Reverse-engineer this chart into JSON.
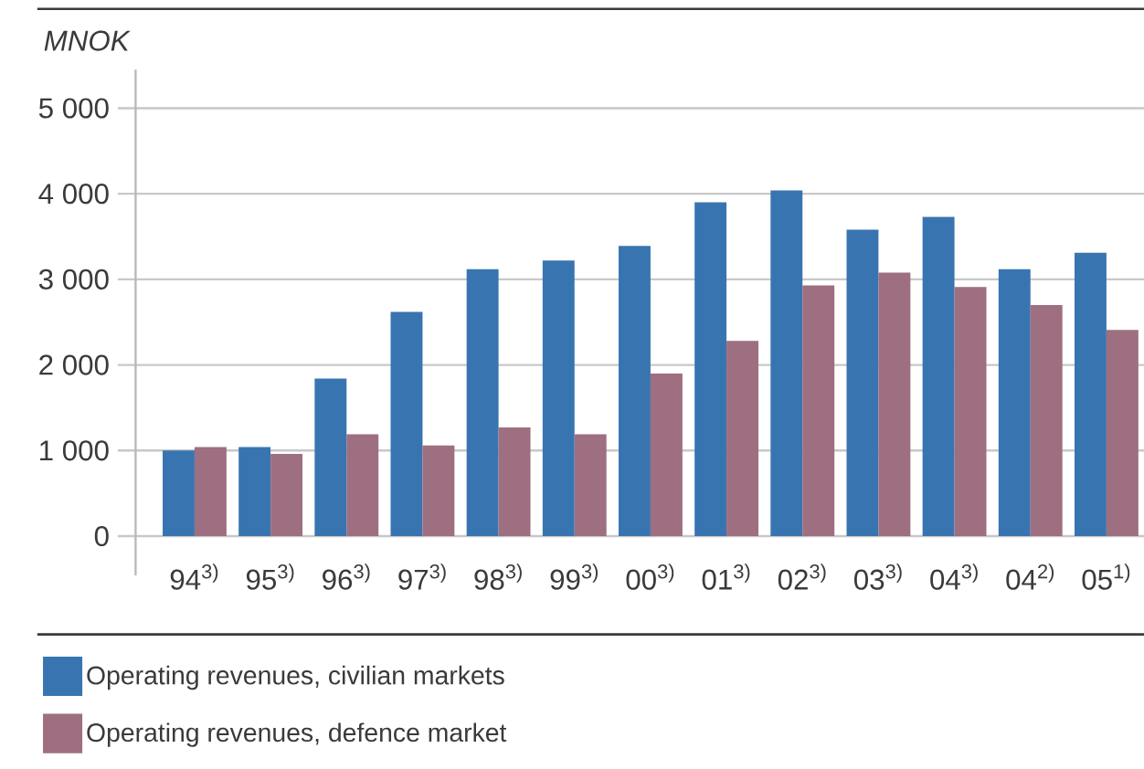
{
  "chart_data": {
    "type": "bar",
    "ylabel": "MNOK",
    "categories": [
      "94$^{3)}$",
      "95$^{3)}$",
      "96$^{3)}$",
      "97$^{3)}$",
      "98$^{3)}$",
      "99$^{3)}$",
      "00$^{3)}$",
      "01$^{3)}$",
      "02$^{3)}$",
      "03$^{3)}$",
      "04$^{3)}$",
      "04$^{2)}$",
      "05$^{1)}$"
    ],
    "series": [
      {
        "name": "Operating revenues, civilian markets",
        "color": "#3875b0",
        "values": [
          1000,
          1040,
          1840,
          2620,
          3120,
          3220,
          3390,
          3900,
          4040,
          3580,
          3730,
          3120,
          3310
        ]
      },
      {
        "name": "Operating revenues, defence market",
        "color": "#9e6e81",
        "values": [
          1040,
          960,
          1190,
          1060,
          1270,
          1190,
          1900,
          2280,
          2930,
          3080,
          2910,
          2700,
          2410
        ]
      }
    ],
    "ylim": [
      0,
      5450
    ],
    "yticks": [
      0,
      {
        "value": 1000,
        "label": "1 000"
      },
      {
        "value": 2000,
        "label": "2 000"
      },
      {
        "value": 3000,
        "label": "3 000"
      },
      {
        "value": 4000,
        "label": "4 000"
      },
      {
        "value": 5000,
        "label": "5 000"
      }
    ],
    "grid": "y",
    "legend": "bottom"
  }
}
